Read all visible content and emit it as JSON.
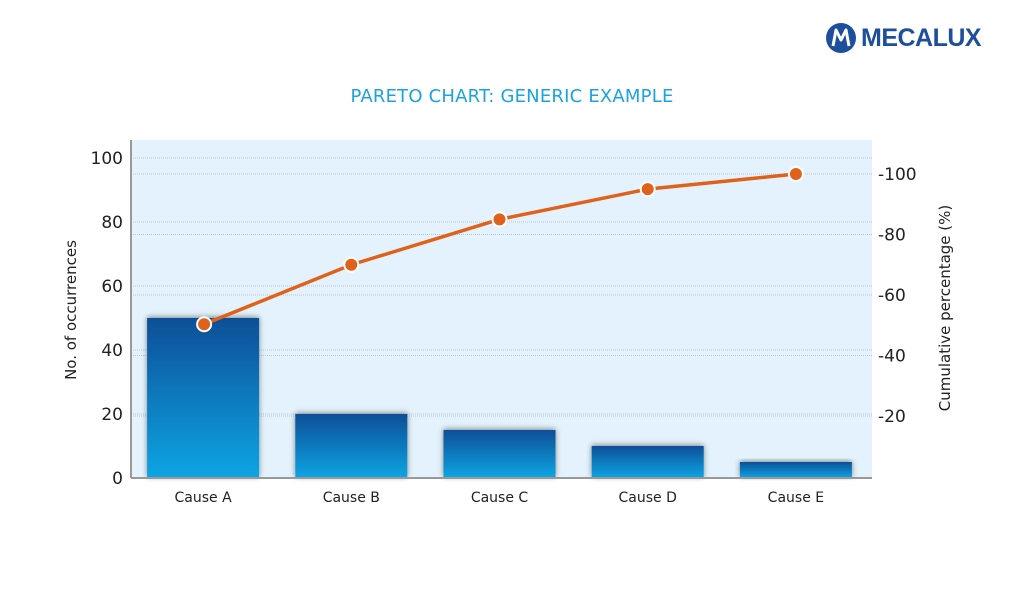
{
  "brand": {
    "name": "MECALUX",
    "color": "#1d4f9c"
  },
  "chart_data": {
    "type": "bar",
    "title": "PARETO CHART: GENERIC EXAMPLE",
    "categories": [
      "Cause A",
      "Cause B",
      "Cause C",
      "Cause D",
      "Cause E"
    ],
    "series": [
      {
        "name": "No. of occurrences",
        "type": "bar",
        "axis": "left",
        "values": [
          50,
          20,
          15,
          10,
          5
        ],
        "color_top": "#0a4f97",
        "color_bottom": "#0ea5e4"
      },
      {
        "name": "Cumulative percentage (%)",
        "type": "line",
        "axis": "right",
        "values": [
          50,
          70,
          85,
          95,
          100
        ],
        "color": "#e0611a"
      }
    ],
    "xlabel": "",
    "ylabel": "No. of occurrences",
    "y2label": "Cumulative percentage (%)",
    "ylim": [
      0,
      100
    ],
    "y2lim": [
      0,
      100
    ],
    "yticks": [
      "0",
      "20",
      "40",
      "60",
      "80",
      "100"
    ],
    "y2ticks": [
      "-20",
      "-40",
      "-60",
      "-80",
      "-100"
    ],
    "grid": true,
    "legend": "none",
    "background": "#e3f2fc"
  }
}
